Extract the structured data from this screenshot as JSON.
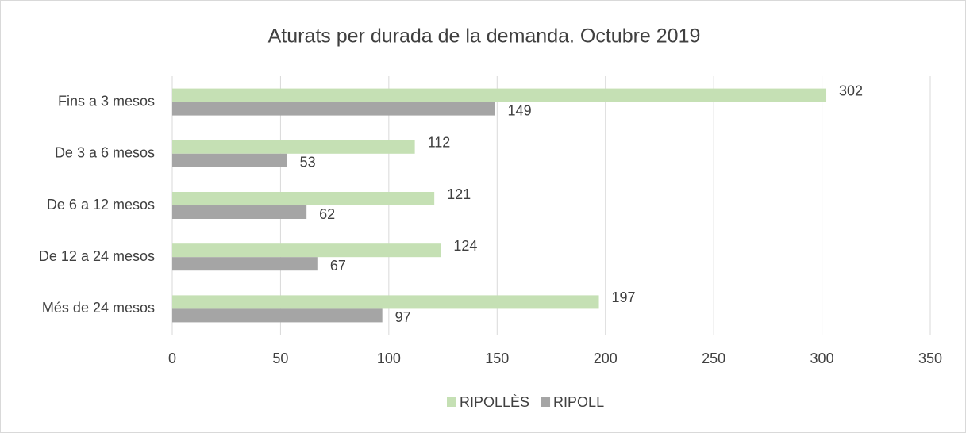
{
  "chart_data": {
    "type": "bar",
    "orientation": "horizontal",
    "title": "Aturats per durada de la demanda. Octubre 2019",
    "categories": [
      "Fins a 3 mesos",
      "De 3 a 6 mesos",
      "De 6 a 12 mesos",
      "De 12 a 24 mesos",
      "Més de 24 mesos"
    ],
    "series": [
      {
        "name": "RIPOLLÈS",
        "color": "#c5e0b4",
        "values": [
          302,
          112,
          121,
          124,
          197
        ]
      },
      {
        "name": "RIPOLL",
        "color": "#a5a5a5",
        "values": [
          149,
          53,
          62,
          67,
          97
        ]
      }
    ],
    "xlim": [
      0,
      350
    ],
    "xticks": [
      0,
      50,
      100,
      150,
      200,
      250,
      300,
      350
    ],
    "grid": true,
    "legend": "bottom"
  }
}
